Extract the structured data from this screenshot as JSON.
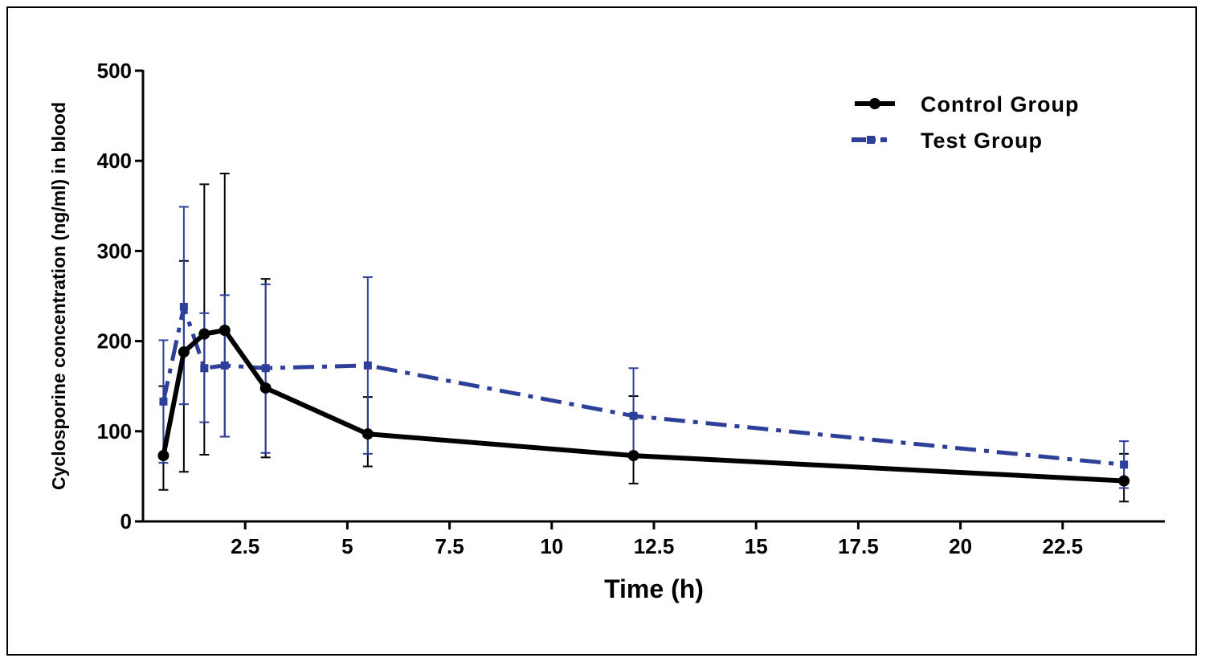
{
  "chart_data": {
    "type": "line",
    "title": "",
    "xlabel": "Time (h)",
    "ylabel": "Cyclosporine concentration (ng/ml) in blood",
    "xlim": [
      0,
      25
    ],
    "ylim": [
      0,
      500
    ],
    "xticks": [
      2.5,
      5,
      7.5,
      10,
      12.5,
      15,
      17.5,
      20,
      22.5
    ],
    "xtick_labels": [
      "2.5",
      "5",
      "7.5",
      "10",
      "12.5",
      "15",
      "17.5",
      "20",
      "22.5"
    ],
    "yticks": [
      0,
      100,
      200,
      300,
      400,
      500
    ],
    "ytick_labels": [
      "0",
      "100",
      "200",
      "300",
      "400",
      "500"
    ],
    "grid": false,
    "legend_position": "top-right",
    "series": [
      {
        "name": "Control Group",
        "color": "#000000",
        "line_style": "solid",
        "marker": "circle",
        "x": [
          0.5,
          1,
          1.5,
          2,
          3,
          5.5,
          12,
          24
        ],
        "y": [
          73,
          188,
          208,
          212,
          148,
          97,
          73,
          45
        ],
        "error_low": [
          35,
          55,
          74,
          94,
          71,
          61,
          42,
          22
        ],
        "error_high": [
          150,
          289,
          374,
          386,
          269,
          138,
          139,
          75
        ]
      },
      {
        "name": "Test Group",
        "color": "#2e3f9a",
        "line_style": "dash-dot",
        "marker": "square",
        "x": [
          0.5,
          1,
          1.5,
          2,
          3,
          5.5,
          12,
          24
        ],
        "y": [
          133,
          238,
          170,
          173,
          170,
          173,
          117,
          63
        ],
        "error_low": [
          65,
          130,
          110,
          94,
          76,
          75,
          72,
          37
        ],
        "error_high": [
          201,
          349,
          231,
          251,
          263,
          271,
          170,
          89
        ]
      }
    ]
  }
}
